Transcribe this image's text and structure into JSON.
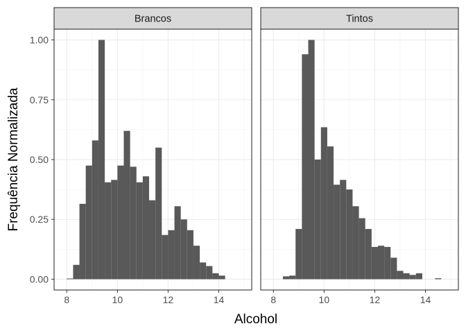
{
  "chart_data": {
    "type": "bar",
    "subtype": "faceted-histogram",
    "xlabel": "Alcohol",
    "ylabel": "Frequência Normalizada",
    "xlim": [
      7.5,
      15.3
    ],
    "ylim": [
      -0.045,
      1.045
    ],
    "x_ticks": [
      8,
      10,
      12,
      14
    ],
    "y_ticks": [
      0.0,
      0.25,
      0.5,
      0.75,
      1.0
    ],
    "y_tick_labels": [
      "0.00",
      "0.25",
      "0.50",
      "0.75",
      "1.00"
    ],
    "bin_width": 0.25,
    "grid": true,
    "bar_color": "#595959",
    "panels": [
      {
        "label": "Brancos",
        "bin_starts": [
          8.0,
          8.25,
          8.5,
          8.75,
          9.0,
          9.25,
          9.5,
          9.75,
          10.0,
          10.25,
          10.5,
          10.75,
          11.0,
          11.25,
          11.5,
          11.75,
          12.0,
          12.25,
          12.5,
          12.75,
          13.0,
          13.25,
          13.5,
          13.75,
          14.0
        ],
        "values": [
          0.003,
          0.06,
          0.315,
          0.475,
          0.58,
          1.0,
          0.405,
          0.415,
          0.475,
          0.62,
          0.47,
          0.405,
          0.43,
          0.33,
          0.55,
          0.185,
          0.205,
          0.305,
          0.25,
          0.205,
          0.14,
          0.07,
          0.055,
          0.025,
          0.015
        ]
      },
      {
        "label": "Tintos",
        "bin_starts": [
          8.375,
          8.625,
          8.875,
          9.125,
          9.375,
          9.625,
          9.875,
          10.125,
          10.375,
          10.625,
          10.875,
          11.125,
          11.375,
          11.625,
          11.875,
          12.125,
          12.375,
          12.625,
          12.875,
          13.125,
          13.375,
          13.625,
          13.875,
          14.125,
          14.375,
          14.625
        ],
        "values": [
          0.012,
          0.015,
          0.21,
          0.94,
          1.0,
          0.5,
          0.635,
          0.555,
          0.395,
          0.415,
          0.375,
          0.305,
          0.255,
          0.21,
          0.135,
          0.14,
          0.135,
          0.09,
          0.035,
          0.025,
          0.018,
          0.025,
          0.0,
          0.0,
          0.004,
          0.0
        ]
      }
    ]
  }
}
